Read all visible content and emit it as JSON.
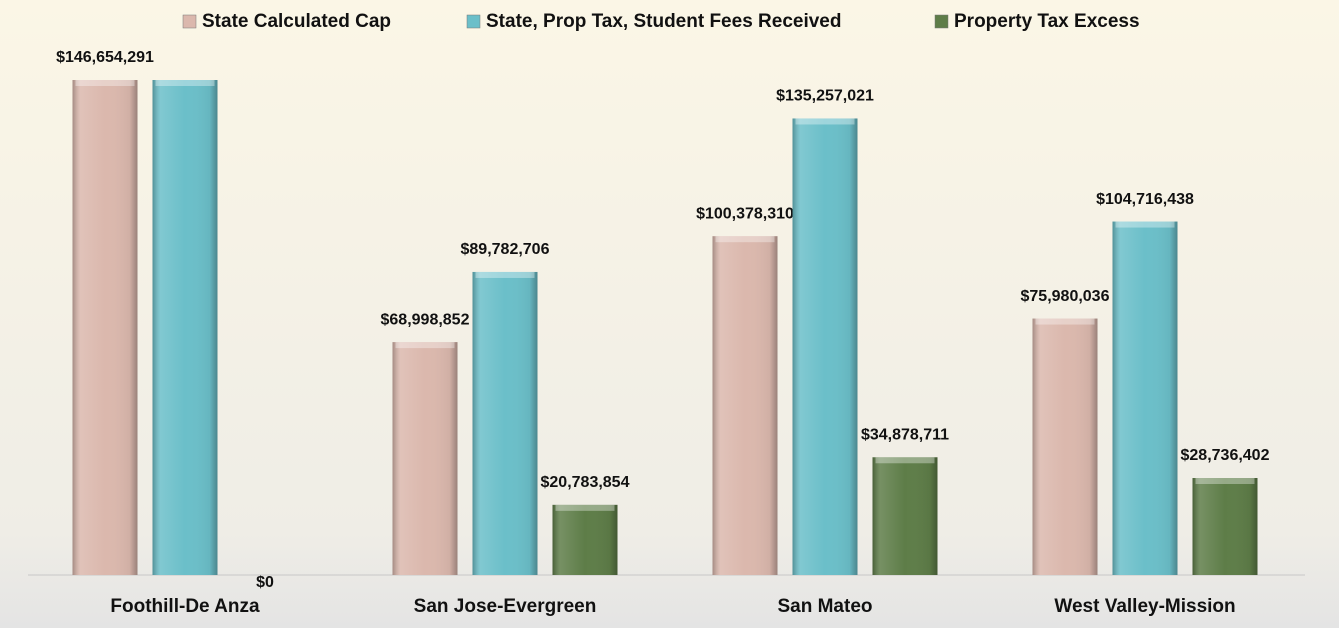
{
  "chart_data": {
    "type": "bar",
    "categories": [
      "Foothill-De Anza",
      "San Jose-Evergreen",
      "San Mateo",
      "West Valley-Mission"
    ],
    "series": [
      {
        "name": "State Calculated Cap",
        "color": "#dbb8ad",
        "values": [
          146654291,
          68998852,
          100378310,
          75980036
        ],
        "value_labels": [
          "$146,654,291",
          "$68,998,852",
          "$100,378,310",
          "$75,980,036"
        ]
      },
      {
        "name": "State, Prop Tax, Student Fees Received",
        "color": "#6bbfc9",
        "values": [
          146654291,
          89782706,
          135257021,
          104716438
        ],
        "value_labels": [
          null,
          "$89,782,706",
          "$135,257,021",
          "$104,716,438"
        ]
      },
      {
        "name": "Property Tax Excess",
        "color": "#5e7d48",
        "values": [
          0,
          20783854,
          34878711,
          28736402
        ],
        "value_labels": [
          "$0",
          "$20,783,854",
          "$34,878,711",
          "$28,736,402"
        ]
      }
    ]
  }
}
